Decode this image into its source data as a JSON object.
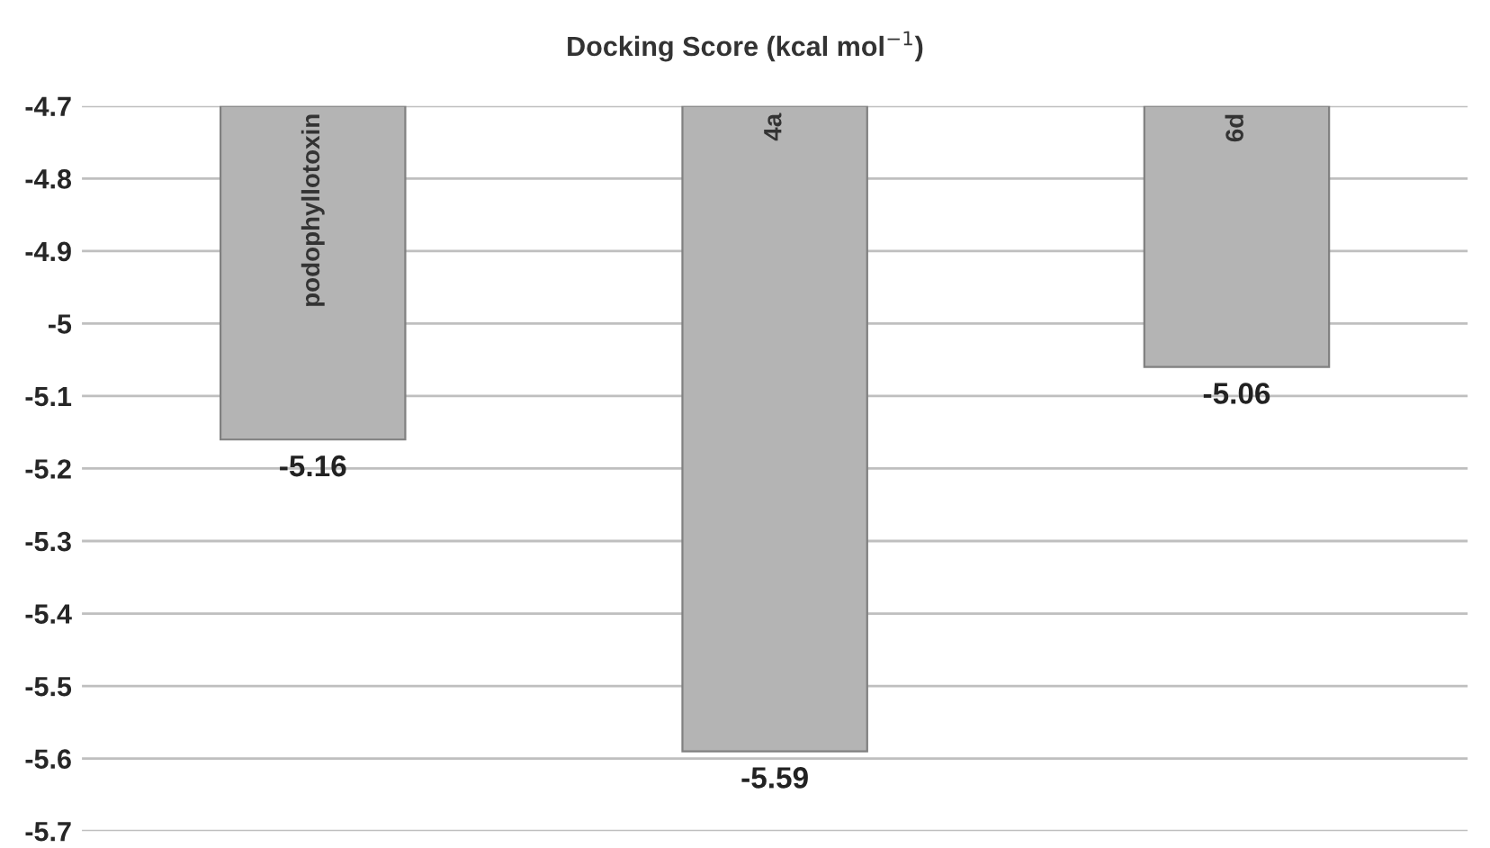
{
  "chart_data": {
    "type": "bar",
    "title": "Docking Score (kcal mol$^{−1}$)",
    "categories": [
      "podophyllotoxin",
      "4a",
      "6d"
    ],
    "values": [
      -5.16,
      -5.59,
      -5.06
    ],
    "color": "#b4b4b4",
    "ylim": [
      -5.7,
      -4.7
    ],
    "yticks": [
      -4.7,
      -4.8,
      -4.9,
      {
        "value": -5.0,
        "label": "-5"
      },
      -5.1,
      -5.2,
      -5.3,
      -5.4,
      -5.5,
      -5.6,
      -5.7
    ],
    "grid": "y",
    "data_labels": true
  }
}
